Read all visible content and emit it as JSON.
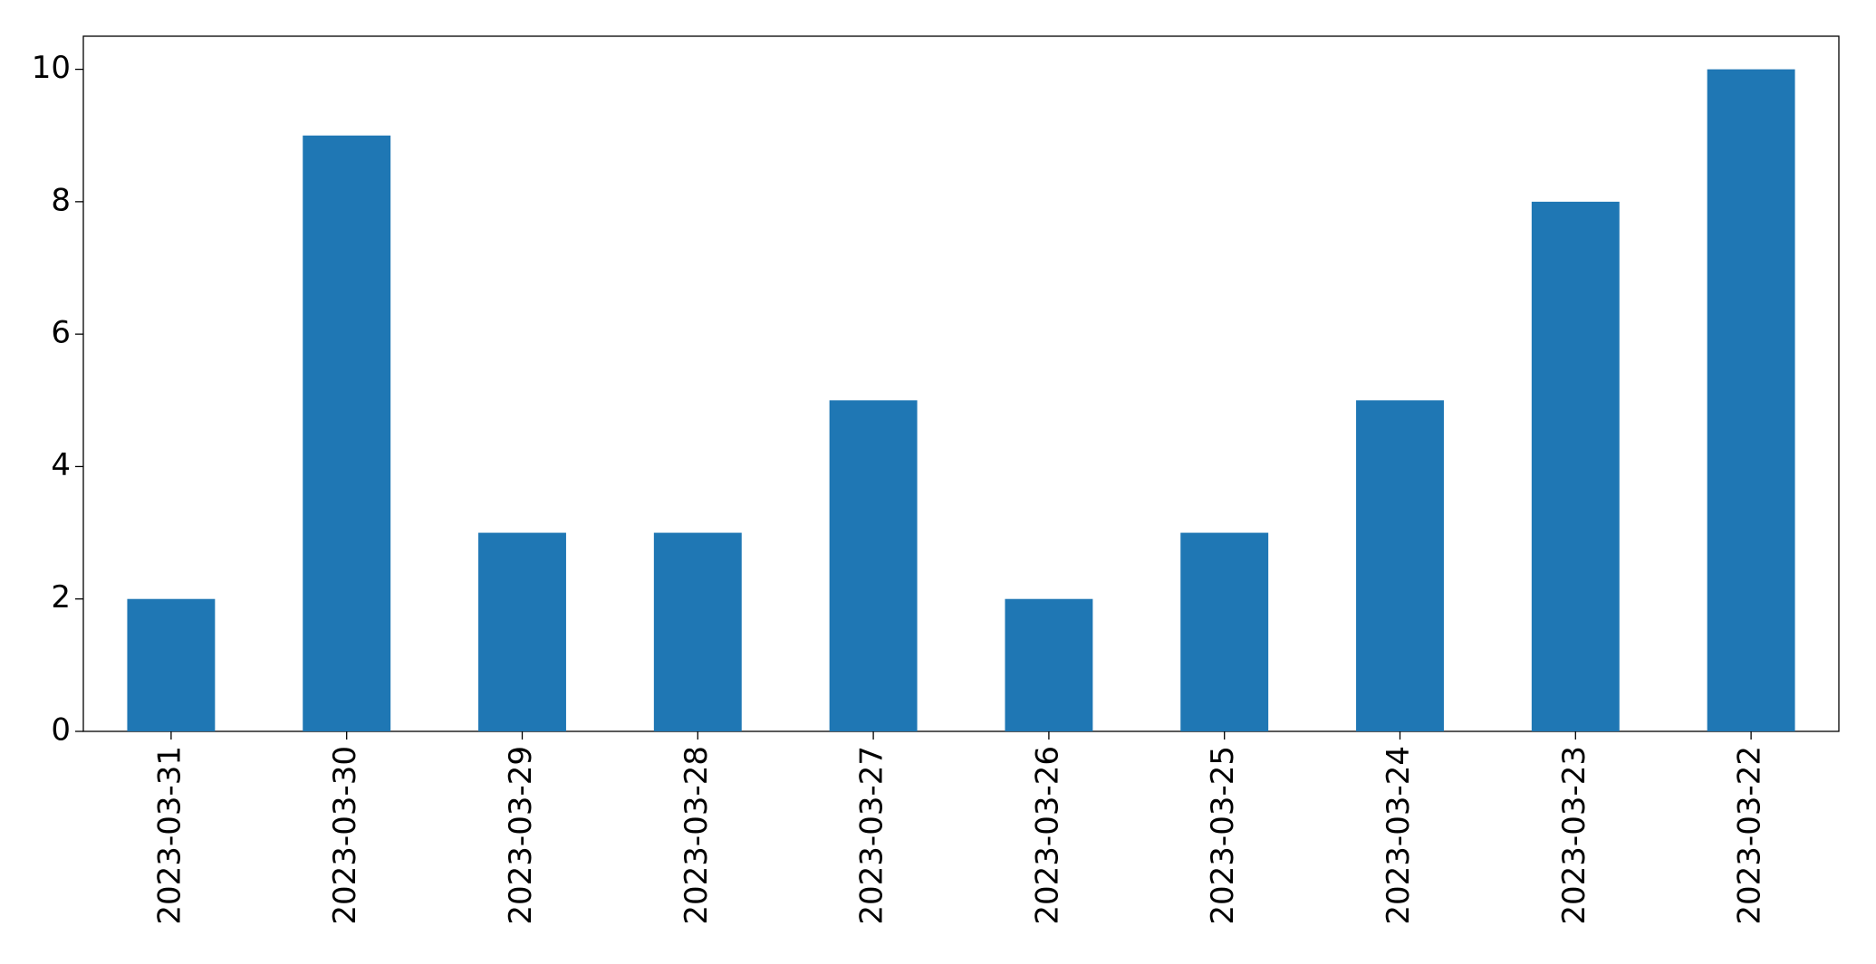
{
  "chart_data": {
    "type": "bar",
    "categories": [
      "2023-03-31",
      "2023-03-30",
      "2023-03-29",
      "2023-03-28",
      "2023-03-27",
      "2023-03-26",
      "2023-03-25",
      "2023-03-24",
      "2023-03-23",
      "2023-03-22"
    ],
    "values": [
      2,
      9,
      3,
      3,
      5,
      2,
      3,
      5,
      8,
      10
    ],
    "color": "#1f77b4",
    "ylim": [
      0,
      10.5
    ],
    "yticks": [
      0,
      2,
      4,
      6,
      8,
      10
    ],
    "grid": false
  }
}
